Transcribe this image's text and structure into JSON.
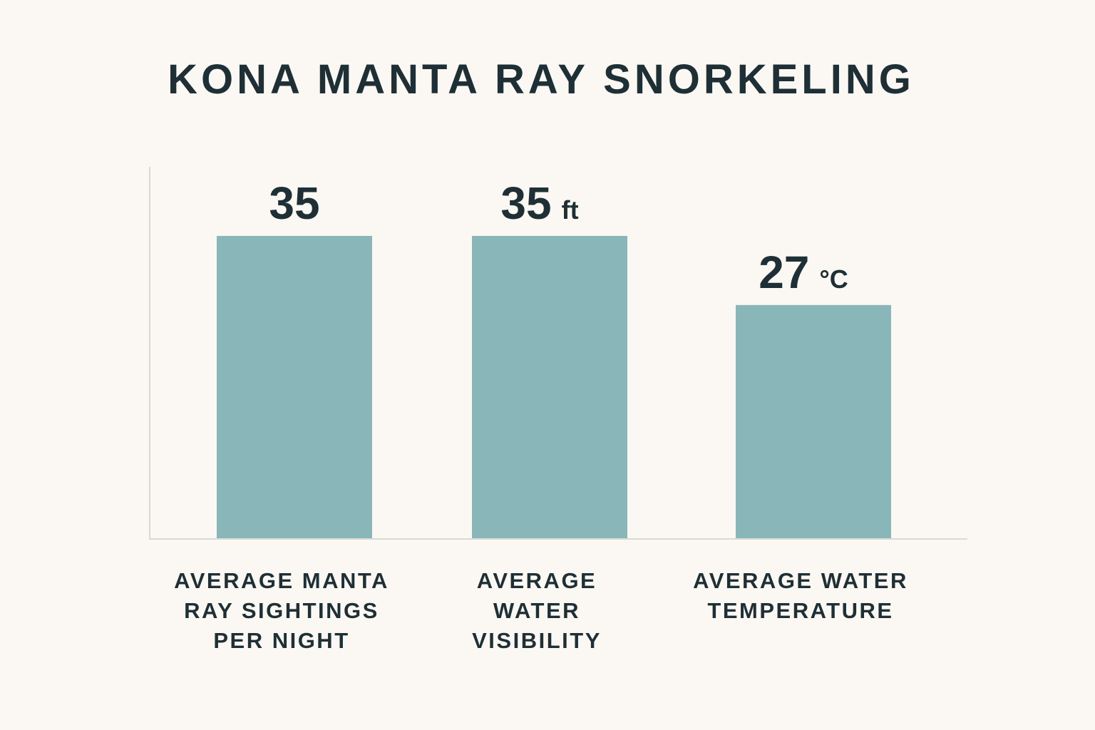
{
  "colors": {
    "background": "#fbf8f3",
    "bar": "#89b6b8",
    "text": "#1e3035",
    "axis": "#d9d9d5"
  },
  "chart_data": {
    "type": "bar",
    "title": "KONA MANTA RAY SNORKELING",
    "xlabel": "",
    "ylabel": "",
    "ylim": [
      0,
      43
    ],
    "grid": false,
    "legend": "none",
    "categories": [
      [
        "AVERAGE MANTA",
        "RAY SIGHTINGS",
        "PER NIGHT"
      ],
      [
        "AVERAGE",
        "WATER",
        "VISIBILITY"
      ],
      [
        "AVERAGE WATER",
        "TEMPERATURE"
      ]
    ],
    "values": [
      35,
      35,
      27
    ],
    "value_labels": [
      "35",
      "35",
      "27"
    ],
    "units": [
      "",
      "ft",
      "°C"
    ]
  }
}
